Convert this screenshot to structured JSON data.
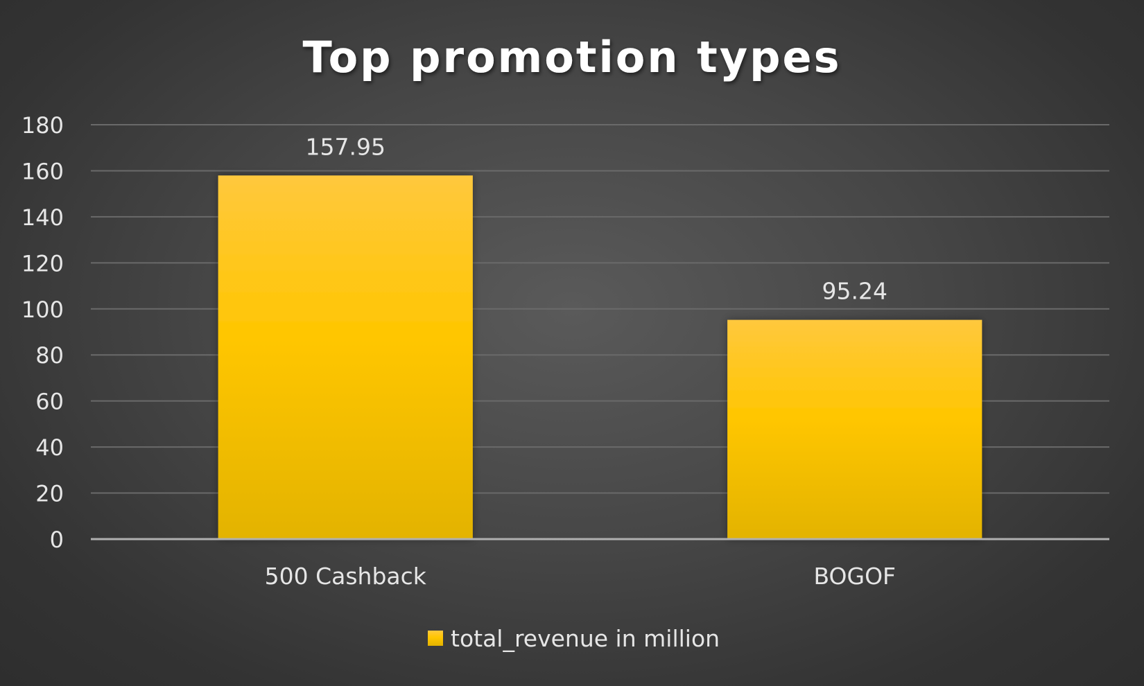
{
  "chart_data": {
    "type": "bar",
    "title": "Top promotion types",
    "categories": [
      "500 Cashback",
      "BOGOF"
    ],
    "series": [
      {
        "name": "total_revenue in million",
        "values": [
          157.95,
          95.24
        ],
        "data_labels": [
          "157.95",
          "95.24"
        ],
        "color": "#FFC000"
      }
    ],
    "xlabel": "",
    "ylabel": "",
    "ylim": [
      0,
      180
    ],
    "yticks": [
      0,
      20,
      40,
      60,
      80,
      100,
      120,
      140,
      160,
      180
    ],
    "grid": true,
    "legend": "bottom-center"
  },
  "colors": {
    "bar_top": "#FFC83D",
    "bar_mid": "#FFC600",
    "bar_bottom": "#E3B300",
    "gridline": "#6a6a6a",
    "axis": "#b0b0b0"
  }
}
